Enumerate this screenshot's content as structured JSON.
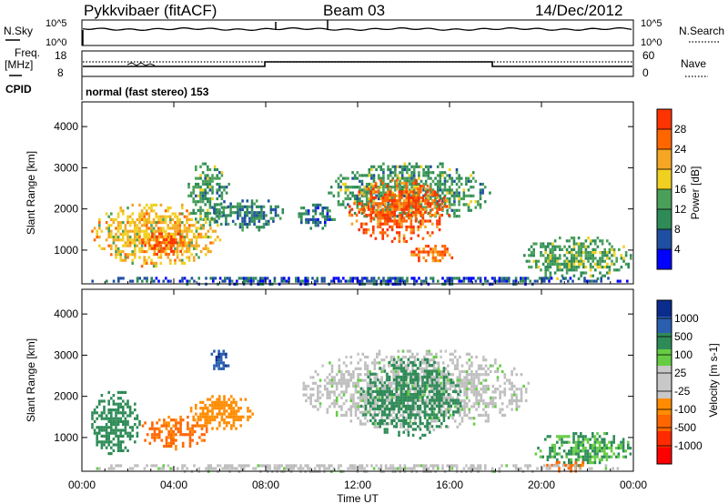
{
  "header": {
    "title": "Pykkvibaer (fitACF)",
    "beam": "Beam 03",
    "date": "14/Dec/2012"
  },
  "top_panels": {
    "nsky_label": "N.Sky",
    "nsky_ticks": [
      "10^5",
      "10^0"
    ],
    "nsearch_label": "N.Search",
    "nsearch_ticks": [
      "10^5",
      "10^0"
    ],
    "freq_label_1": "Freq.",
    "freq_label_2": "[MHz]",
    "freq_ticks": [
      "18",
      "8"
    ],
    "nave_label": "Nave",
    "nave_ticks": [
      "60",
      "0"
    ],
    "cpid_label": "CPID",
    "cpid_text": "normal (fast stereo) 153"
  },
  "colors": {
    "power_scale": [
      "#0000ff",
      "#1f4fa0",
      "#2e8b57",
      "#4aa05a",
      "#f0d020",
      "#f5a623",
      "#ff6600",
      "#ff3300",
      "#ff0000"
    ],
    "velocity_scale": [
      "#0b2c8c",
      "#2a5fb0",
      "#2e8b57",
      "#66cc44",
      "#c8c8c8",
      "#c8c8c8",
      "#ff8c00",
      "#ff6600",
      "#ff2a00",
      "#ff0000"
    ],
    "ground_scatter": "#bebebe"
  },
  "chart_data": [
    {
      "type": "heatmap",
      "name": "Power",
      "ylabel": "Slant Range [km]",
      "xlabel": "Time UT",
      "x_ticks": [
        "00:00",
        "04:00",
        "08:00",
        "12:00",
        "16:00",
        "20:00",
        "00:00"
      ],
      "y_ticks": [
        1000,
        2000,
        3000,
        4000
      ],
      "ylim": [
        180,
        4600
      ],
      "xlim_hours": [
        0,
        24
      ],
      "colorbar": {
        "label": "Power [dB]",
        "ticks": [
          4,
          8,
          12,
          16,
          20,
          24,
          28
        ],
        "range": [
          0,
          32
        ]
      },
      "echo_regions": [
        {
          "t0": 0.3,
          "t1": 6.0,
          "r0": 600,
          "r1": 2200,
          "level": 20
        },
        {
          "t0": 2.5,
          "t1": 4.6,
          "r0": 850,
          "r1": 1500,
          "level": 27
        },
        {
          "t0": 4.5,
          "t1": 6.4,
          "r0": 1600,
          "r1": 3200,
          "level": 12
        },
        {
          "t0": 5.5,
          "t1": 9.0,
          "r0": 1500,
          "r1": 2300,
          "level": 9
        },
        {
          "t0": 9.3,
          "t1": 11.0,
          "r0": 1500,
          "r1": 2200,
          "level": 8
        },
        {
          "t0": 10.6,
          "t1": 17.8,
          "r0": 1700,
          "r1": 3200,
          "level": 12
        },
        {
          "t0": 11.5,
          "t1": 16.0,
          "r0": 1200,
          "r1": 2800,
          "level": 27
        },
        {
          "t0": 14.0,
          "t1": 16.2,
          "r0": 700,
          "r1": 1200,
          "level": 26
        },
        {
          "t0": 19.0,
          "t1": 24.0,
          "r0": 300,
          "r1": 1400,
          "level": 13
        },
        {
          "t0": 0.0,
          "t1": 24.0,
          "r0": 180,
          "r1": 420,
          "level": 6
        }
      ]
    },
    {
      "type": "heatmap",
      "name": "Velocity",
      "ylabel": "Slant Range [km]",
      "xlabel": "Time UT",
      "x_ticks": [
        "00:00",
        "04:00",
        "08:00",
        "12:00",
        "16:00",
        "20:00",
        "00:00"
      ],
      "y_ticks": [
        1000,
        2000,
        3000,
        4000
      ],
      "ylim": [
        180,
        4600
      ],
      "xlim_hours": [
        0,
        24
      ],
      "colorbar": {
        "label": "Velocity [m s-1]",
        "ticks": [
          1000,
          500,
          100,
          25,
          -25,
          -100,
          -500,
          -1000
        ]
      },
      "echo_regions": [
        {
          "t0": 0.3,
          "t1": 2.5,
          "r0": 600,
          "r1": 2200,
          "level": 200
        },
        {
          "t0": 2.5,
          "t1": 5.5,
          "r0": 750,
          "r1": 1600,
          "level": -400
        },
        {
          "t0": 4.5,
          "t1": 7.5,
          "r0": 1200,
          "r1": 2100,
          "level": -200
        },
        {
          "t0": 5.5,
          "t1": 6.4,
          "r0": 2600,
          "r1": 3200,
          "level": 700
        },
        {
          "t0": 9.5,
          "t1": 19.5,
          "r0": 1200,
          "r1": 3200,
          "level": 0
        },
        {
          "t0": 12.0,
          "t1": 16.5,
          "r0": 1000,
          "r1": 3000,
          "level": 120
        },
        {
          "t0": 19.5,
          "t1": 24.0,
          "r0": 300,
          "r1": 1200,
          "level": 60
        },
        {
          "t0": 20.0,
          "t1": 22.0,
          "r0": 200,
          "r1": 500,
          "level": -500
        },
        {
          "t0": 0.0,
          "t1": 24.0,
          "r0": 180,
          "r1": 420,
          "level": 0
        }
      ]
    }
  ]
}
